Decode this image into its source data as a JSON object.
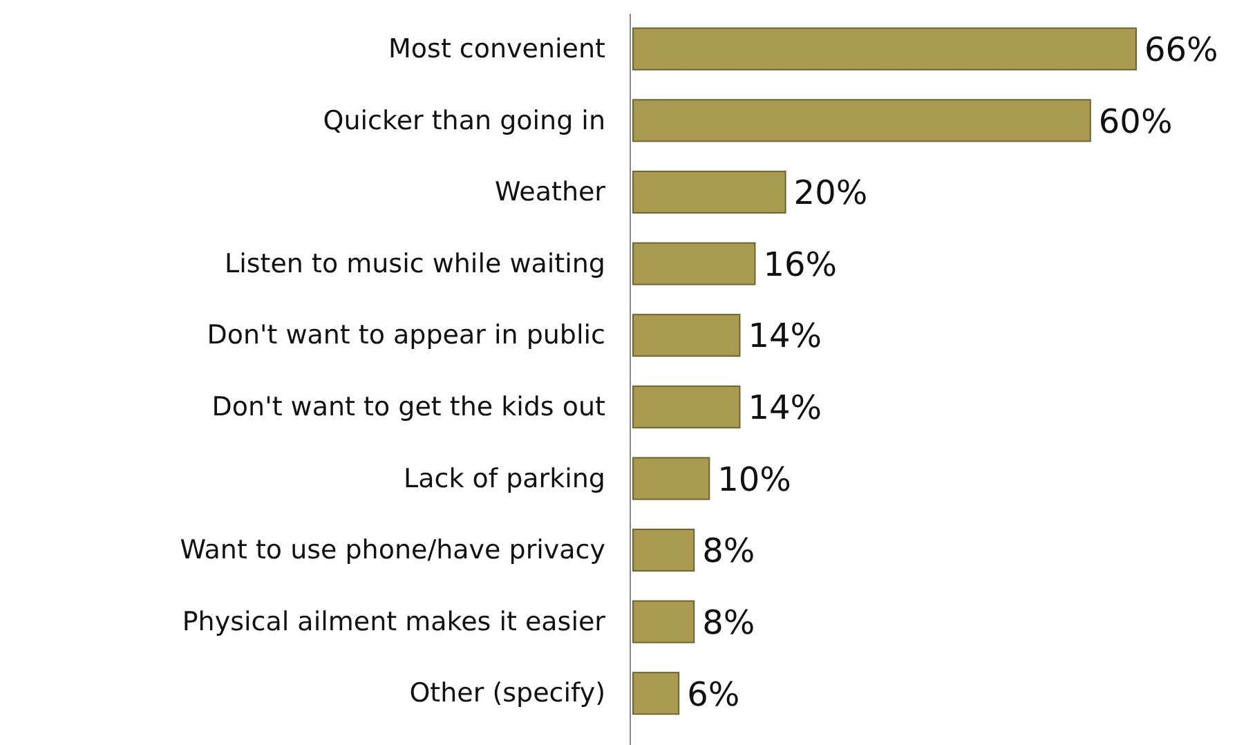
{
  "chart_data": {
    "type": "bar",
    "orientation": "horizontal",
    "categories": [
      "Most convenient",
      "Quicker than going in",
      "Weather",
      "Listen to music while waiting",
      "Don't want to appear in public",
      "Don't want to get the kids out",
      "Lack of parking",
      "Want to use phone/have privacy",
      "Physical ailment makes it easier",
      "Other (specify)"
    ],
    "values": [
      66,
      60,
      20,
      16,
      14,
      14,
      10,
      8,
      8,
      6
    ],
    "value_labels": [
      "66%",
      "60%",
      "20%",
      "16%",
      "14%",
      "14%",
      "10%",
      "8%",
      "8%",
      "6%"
    ],
    "color": "#a89a4e"
  }
}
